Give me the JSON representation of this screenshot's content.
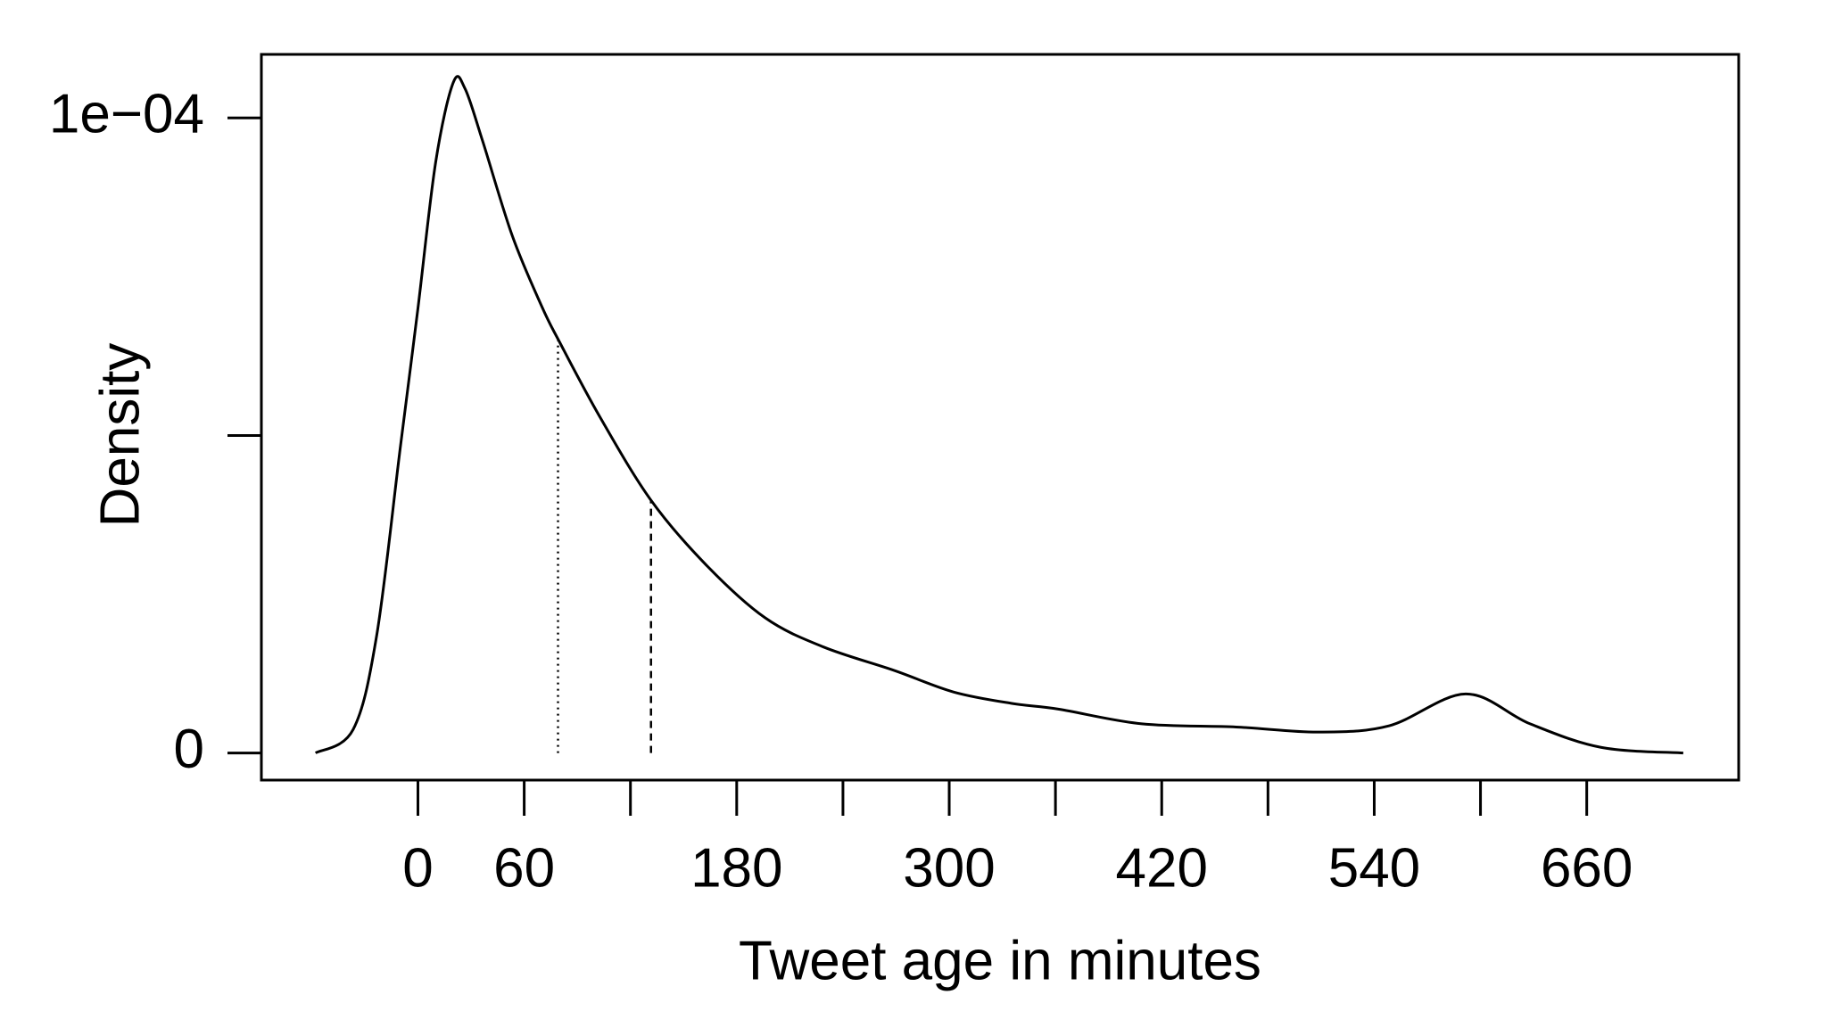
{
  "chart_data": {
    "type": "density",
    "x_label": "Tweet age in minutes",
    "y_label": "Density",
    "x": [
      -57.8,
      -36.6,
      -23.3,
      -10,
      0,
      10,
      20,
      26.6,
      36.6,
      53.2,
      69.8,
      79.8,
      103,
      131.6,
      162.8,
      196,
      229,
      269,
      302.6,
      335.8,
      362,
      408.8,
      462,
      508.6,
      548.5,
      591.6,
      628,
      668,
      714.5
    ],
    "values": [
      0,
      3.7e-06,
      1.85e-05,
      4.8e-05,
      7e-05,
      9.3e-05,
      0.0001056,
      0.0001046,
      9.63e-05,
      8.15e-05,
      7.04e-05,
      6.48e-05,
      5.28e-05,
      3.98e-05,
      2.96e-05,
      2.13e-05,
      1.67e-05,
      1.3e-05,
      9.6e-06,
      7.8e-06,
      6.9e-06,
      4.6e-06,
      4.1e-06,
      3.3e-06,
      4.3e-06,
      9.3e-06,
      4.6e-06,
      9e-07,
      0
    ],
    "color": "#000000",
    "vlines": [
      {
        "x": 79.1,
        "y": 6.5e-05,
        "style": "dotted"
      },
      {
        "x": 131.6,
        "y": 3.98e-05,
        "style": "dashed"
      }
    ],
    "xlim": [
      -88.4,
      745.8
    ],
    "ylim": [
      -4.26e-06,
      0.00011
    ],
    "xticks": [
      0,
      60,
      {
        "value": 120,
        "label": null
      },
      180,
      {
        "value": 240,
        "label": null
      },
      300,
      {
        "value": 360,
        "label": null
      },
      420,
      {
        "value": 480,
        "label": null
      },
      540,
      {
        "value": 600,
        "label": null
      },
      660
    ],
    "yticks": [
      0,
      {
        "value": 5e-05,
        "label": null
      },
      {
        "value": 0.0001,
        "label": "1e−04"
      }
    ]
  }
}
